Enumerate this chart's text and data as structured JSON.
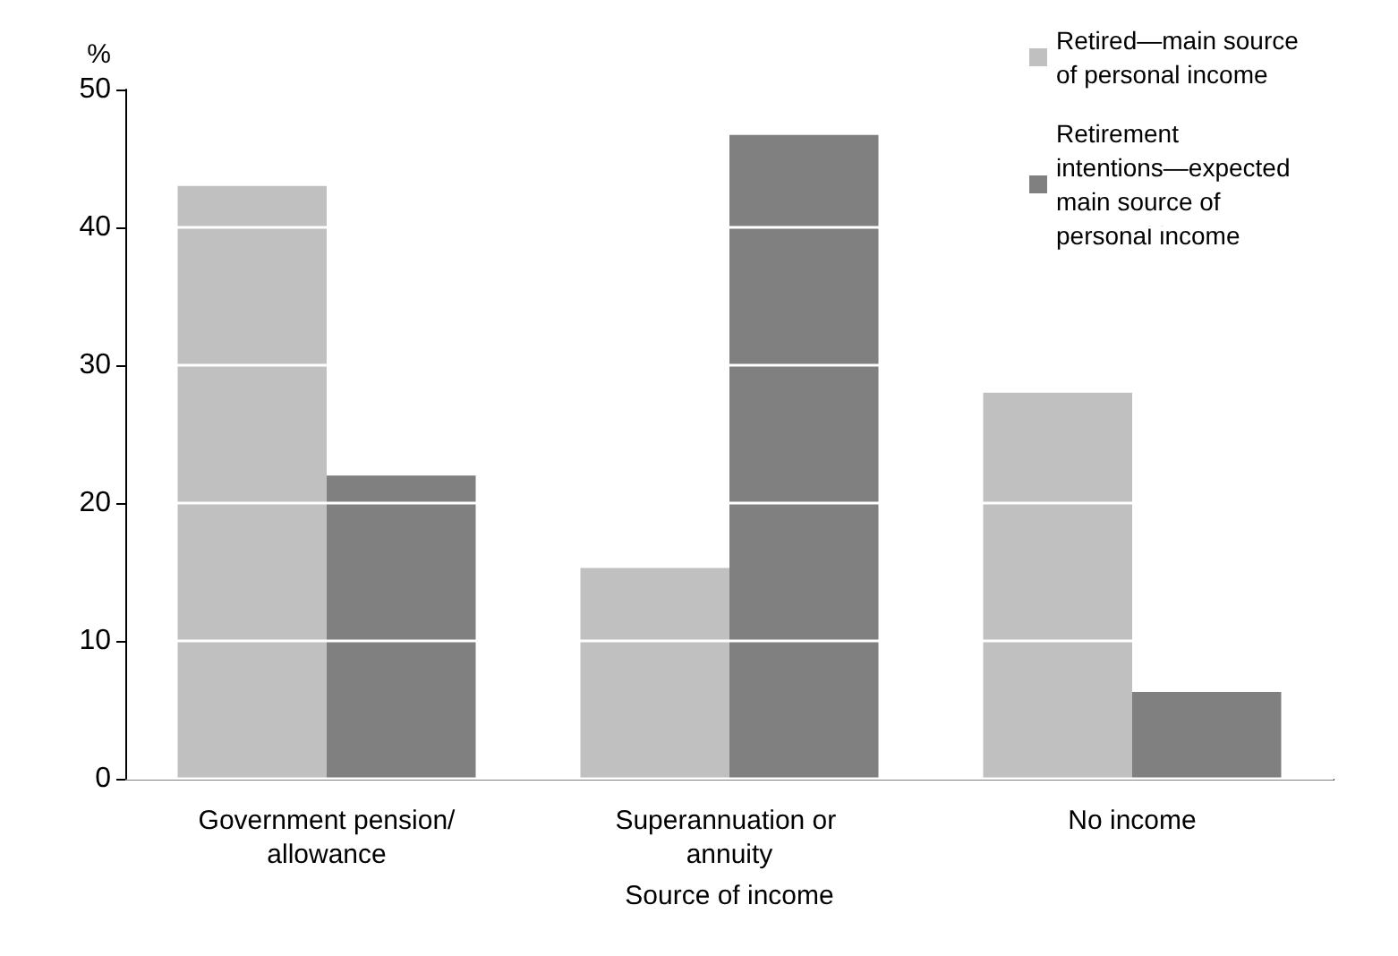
{
  "chart_data": {
    "type": "bar",
    "xlabel": "Source of income",
    "ylabel": "%",
    "categories": [
      "Government pension/allowance",
      "Superannuation or annuity",
      "No income"
    ],
    "series": [
      {
        "name": "Retired—main source of personal income",
        "color": "#c0c0c0",
        "values": [
          43,
          15.3,
          28
        ]
      },
      {
        "name": "Retirement intentions—expected main source of personal income",
        "color": "#808080",
        "values": [
          22,
          46.7,
          6.3
        ]
      }
    ],
    "ylim": [
      0,
      50
    ],
    "yticks": [
      0,
      10,
      20,
      30,
      40,
      50
    ],
    "grid": "y",
    "legend": "top right"
  }
}
